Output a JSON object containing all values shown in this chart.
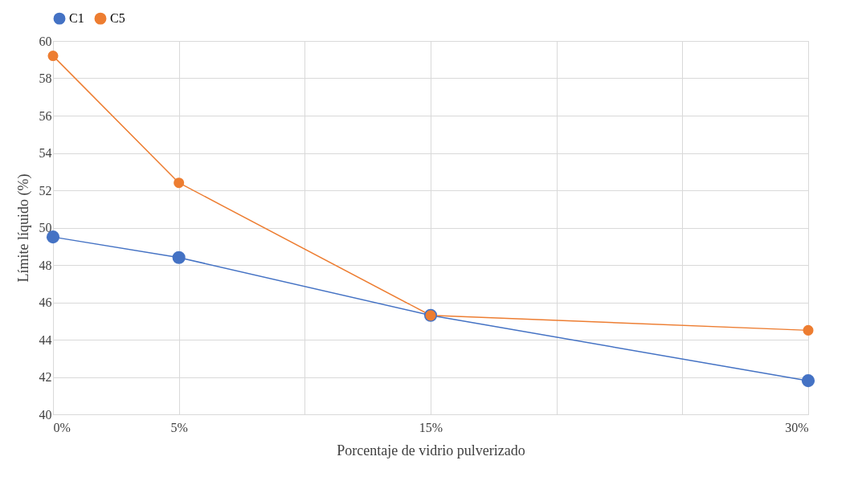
{
  "chart_data": {
    "type": "line",
    "xlabel": "Porcentaje de vidrio pulverizado",
    "ylabel": "Límite líquido (%)",
    "x": [
      0,
      5,
      15,
      30
    ],
    "series": [
      {
        "name": "C1",
        "color": "#4472c4",
        "values": [
          49.5,
          48.4,
          45.3,
          41.8
        ]
      },
      {
        "name": "C5",
        "color": "#ed7d31",
        "values": [
          59.2,
          52.4,
          45.3,
          44.5
        ]
      }
    ],
    "xlim": [
      0,
      30
    ],
    "xticks": [
      {
        "value": 0,
        "label": "0%"
      },
      {
        "value": 5,
        "label": "5%"
      },
      {
        "value": 10,
        "label": null
      },
      {
        "value": 15,
        "label": "15%"
      },
      {
        "value": 20,
        "label": null
      },
      {
        "value": 25,
        "label": null
      },
      {
        "value": 30,
        "label": "30%"
      }
    ],
    "ylim": [
      40,
      60
    ],
    "yticks": [
      40,
      42,
      44,
      46,
      48,
      50,
      52,
      54,
      56,
      58,
      60
    ],
    "grid": true,
    "legend": "top",
    "marker": "circle",
    "line_style": "solid"
  }
}
